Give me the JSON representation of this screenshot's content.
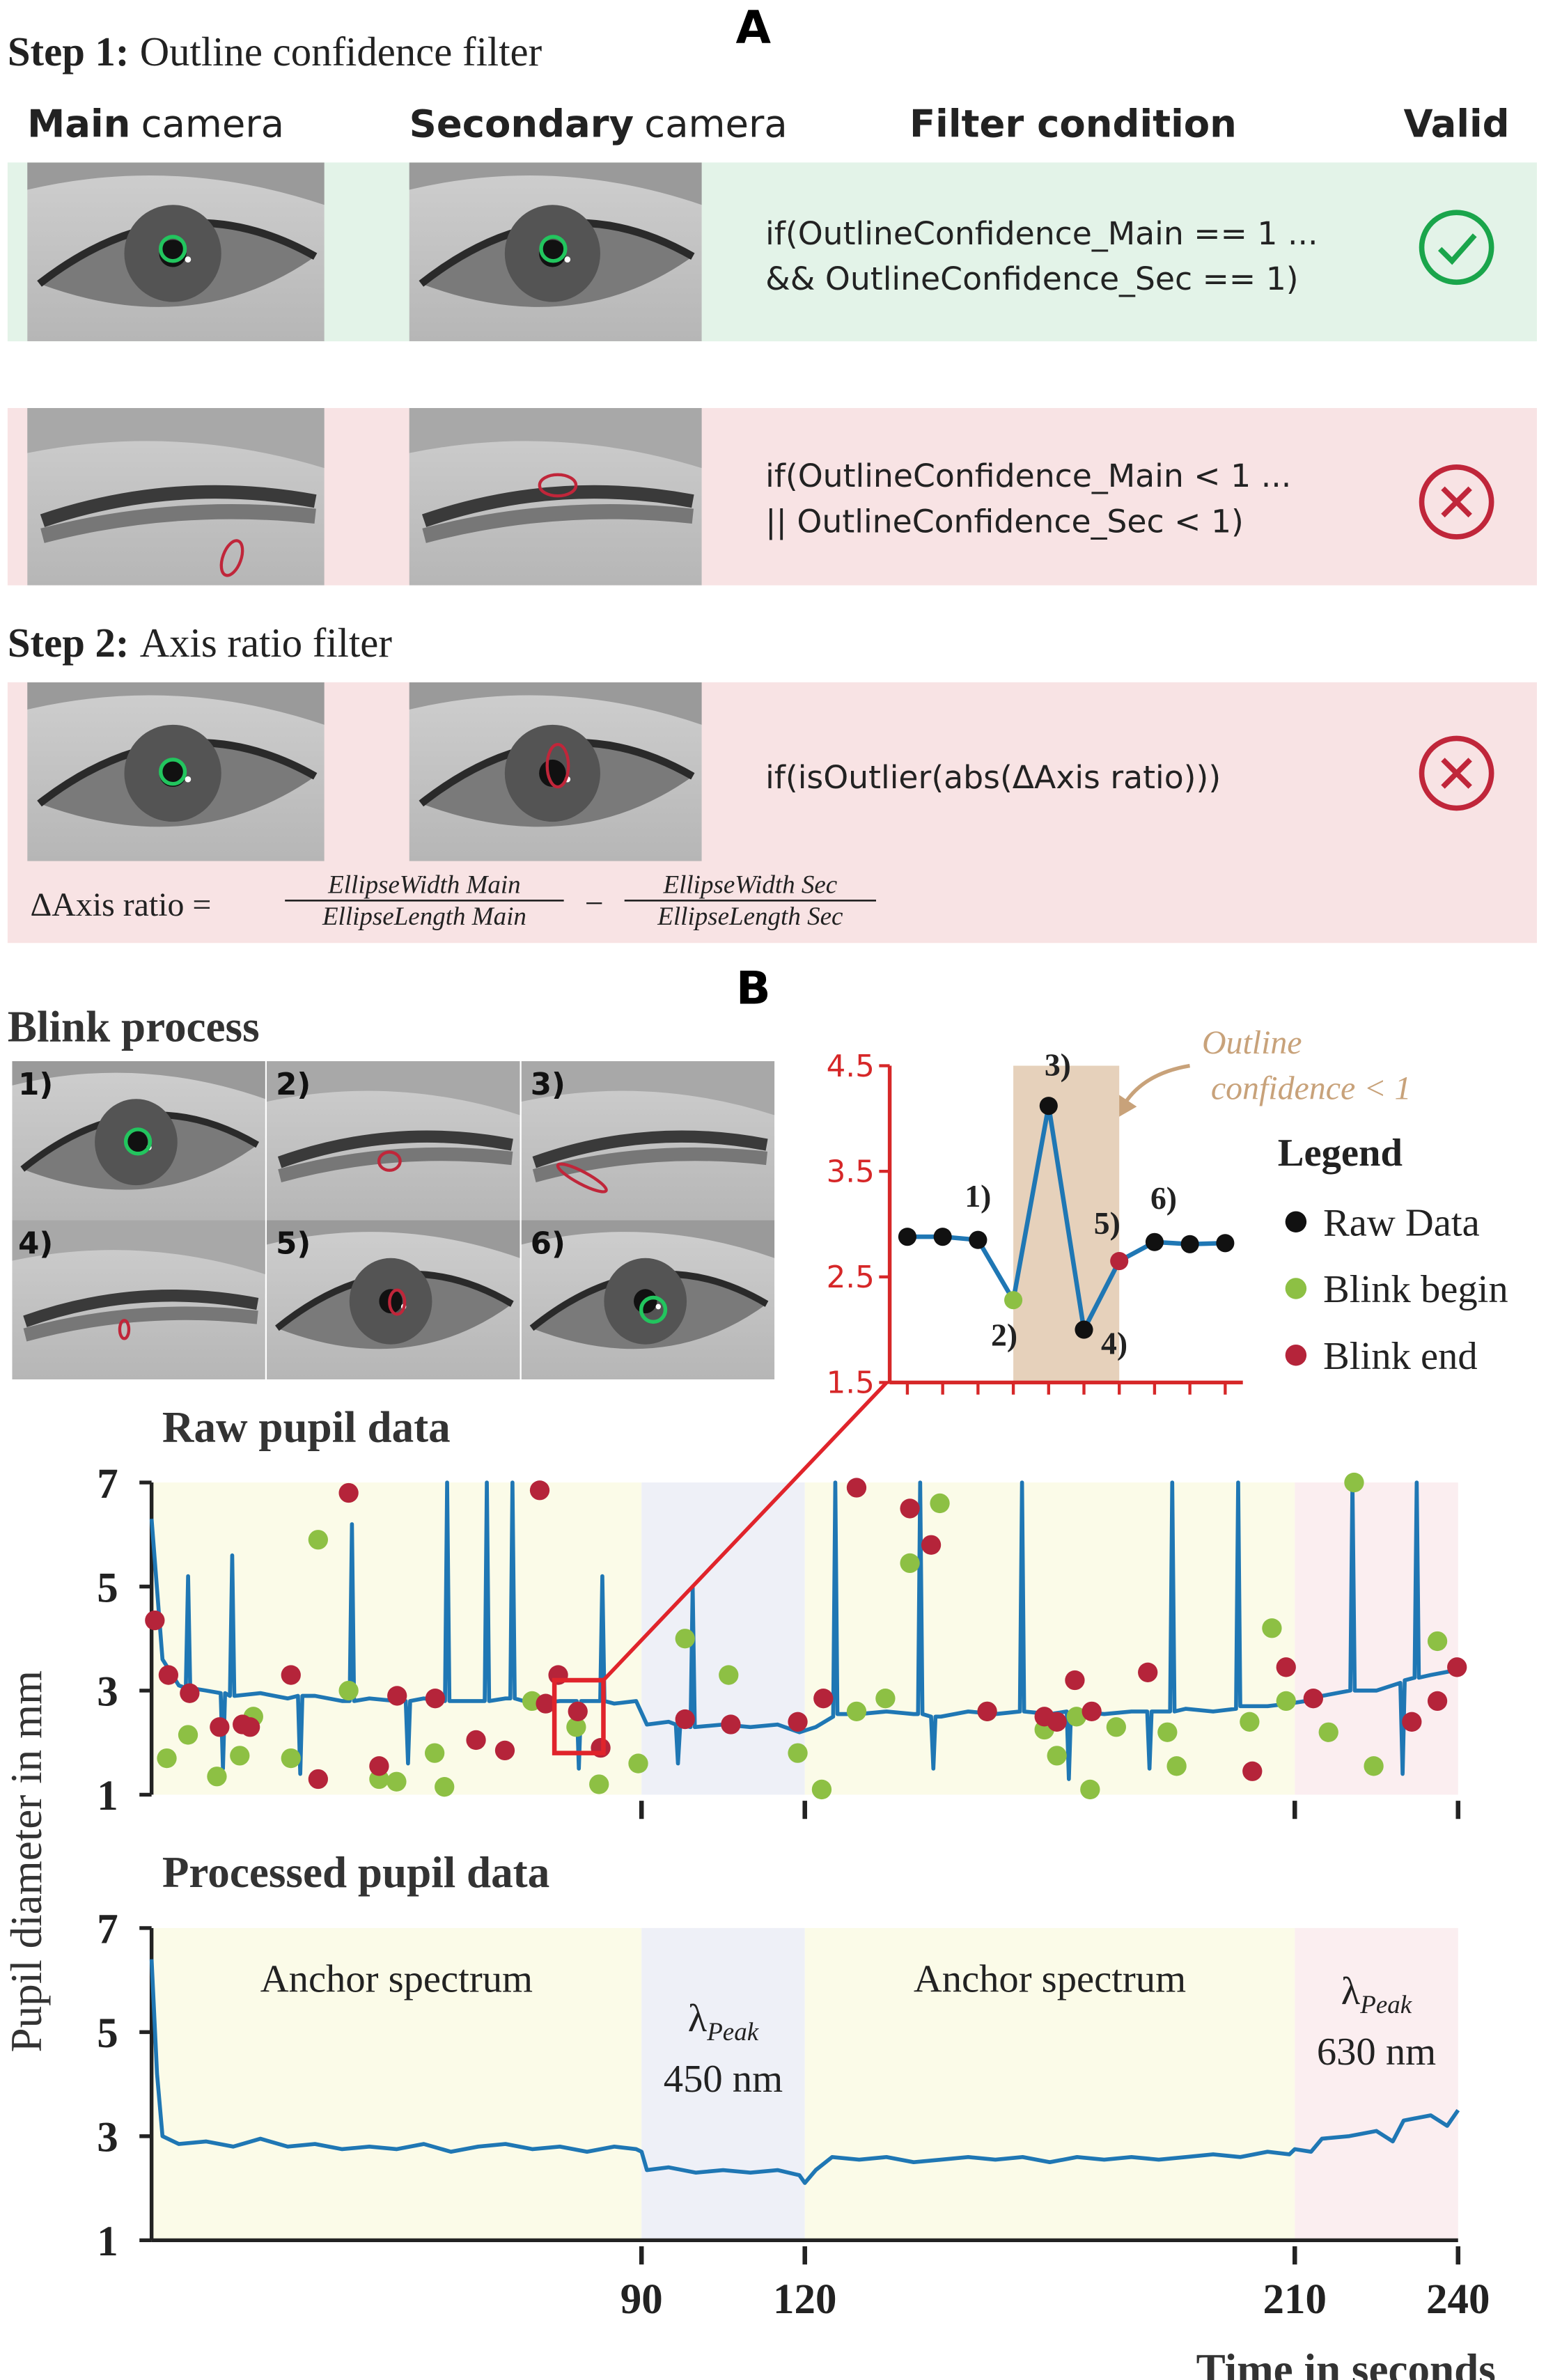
{
  "panel_a": {
    "label": "A",
    "step1": {
      "label": "Step 1:",
      "text": "Outline confidence filter"
    },
    "columns": [
      {
        "bold": "Main",
        "text": "camera"
      },
      {
        "bold": "Secondary",
        "text": "camera"
      },
      {
        "bold": "Filter condition"
      },
      {
        "bold": "Valid"
      }
    ],
    "rows": [
      {
        "condition": [
          "if(OutlineConfidence_Main == 1 ...",
          "&& OutlineConfidence_Sec == 1)"
        ]
      },
      {
        "condition": [
          "if(OutlineConfidence_Main < 1 ...",
          "|| OutlineConfidence_Sec < 1)"
        ]
      }
    ],
    "step2": {
      "label": "Step 2:",
      "text": "Axis ratio filter"
    },
    "step2_condition": "if(isOutlier(abs(ΔAxis ratio)))",
    "formula": {
      "lhs": "ΔAxis ratio =",
      "operator": "−",
      "terms": [
        {
          "num": "EllipseWidth Main",
          "den": "EllipseLength Main"
        },
        {
          "num": "EllipseWidth Sec",
          "den": "EllipseLength Sec"
        }
      ]
    }
  },
  "panel_b": {
    "label": "B",
    "blink_title": "Blink process",
    "frames": [
      "1)",
      "2)",
      "3)",
      "4)",
      "5)",
      "6)"
    ]
  },
  "chart_data": [
    {
      "type": "line",
      "categories": [
        null,
        null,
        null,
        null,
        null,
        null,
        null,
        null,
        null,
        null
      ],
      "values": [
        2.88,
        2.88,
        2.85,
        2.28,
        4.12,
        2.0,
        2.65,
        2.83,
        2.81,
        2.82
      ],
      "point_colors": [
        "#111111",
        "#111111",
        "#111111",
        "#8dc044",
        "#111111",
        "#111111",
        "#b5243a",
        "#111111",
        "#111111",
        "#111111"
      ],
      "point_labels": [
        null,
        null,
        "1)",
        "2)",
        "3)",
        "4)",
        "5)",
        "6)",
        null,
        null
      ],
      "line_color": "#1f77b4",
      "axis_color": "#d62728",
      "shade": [
        3,
        6
      ],
      "shade_color": "#e6d1bb",
      "ylim": [
        1.5,
        4.5
      ],
      "yticks": [
        1.5,
        2.5,
        3.5,
        4.5
      ],
      "annotation": {
        "lines": [
          "Outline",
          "confidence < 1"
        ],
        "color": "#c8a27a"
      },
      "legend": {
        "title": "Legend",
        "entries": [
          {
            "name": "Raw Data",
            "color": "#111111"
          },
          {
            "name": "Blink begin",
            "color": "#8dc044"
          },
          {
            "name": "Blink end",
            "color": "#b5243a"
          }
        ]
      }
    },
    {
      "type": "line",
      "title": "Raw pupil data",
      "line_color": "#1f77b4",
      "x": [
        0,
        2,
        5,
        6.3,
        6.7,
        7.1,
        10,
        12.7,
        13.1,
        13.5,
        14.4,
        14.8,
        15.2,
        20,
        25,
        26.9,
        27.3,
        27.7,
        30,
        35,
        36.4,
        36.8,
        37.2,
        40,
        45,
        46.7,
        47.1,
        47.5,
        50,
        53.9,
        54.3,
        54.7,
        55,
        60,
        61.2,
        61.6,
        62,
        65,
        65.9,
        66.3,
        66.7,
        70,
        75,
        78.1,
        78.5,
        78.9,
        80,
        82.4,
        82.8,
        83.2,
        85,
        89,
        91,
        95,
        96.3,
        96.7,
        97.1,
        99,
        99.4,
        99.8,
        105,
        110,
        115,
        119,
        122,
        125.2,
        125.6,
        126,
        130,
        135,
        140,
        140.8,
        141.2,
        141.6,
        143.2,
        143.6,
        144,
        145,
        150,
        155,
        159.5,
        159.9,
        160.3,
        165,
        168.1,
        168.5,
        168.9,
        170,
        175,
        180,
        182.9,
        183.3,
        183.7,
        185,
        187.1,
        187.5,
        187.9,
        190,
        195,
        199.2,
        199.6,
        200,
        205,
        209,
        212,
        215,
        220.2,
        220.6,
        221,
        225,
        229.4,
        229.8,
        230.2,
        232,
        232.4,
        232.8,
        235,
        240
      ],
      "values": [
        6.3,
        3.6,
        3.1,
        3.05,
        5.2,
        3.05,
        3.0,
        2.95,
        1.5,
        2.95,
        2.9,
        5.6,
        2.9,
        2.95,
        2.85,
        2.9,
        1.4,
        2.9,
        2.9,
        2.8,
        2.8,
        6.2,
        2.8,
        2.85,
        2.8,
        2.8,
        1.6,
        2.8,
        2.85,
        2.8,
        7,
        2.8,
        2.8,
        2.8,
        2.8,
        7,
        2.8,
        2.85,
        2.85,
        7,
        2.85,
        2.75,
        2.8,
        2.8,
        1.5,
        2.8,
        2.8,
        2.8,
        5.2,
        2.8,
        2.75,
        2.8,
        2.35,
        2.4,
        2.35,
        1.6,
        2.35,
        2.3,
        5,
        2.3,
        2.35,
        2.3,
        2.35,
        2.2,
        2.3,
        2.5,
        7,
        2.55,
        2.55,
        2.6,
        2.55,
        2.55,
        7,
        2.55,
        2.5,
        1.5,
        2.5,
        2.5,
        2.6,
        2.55,
        2.6,
        7,
        2.6,
        2.55,
        2.6,
        1.3,
        2.6,
        2.6,
        2.55,
        2.6,
        2.6,
        1.5,
        2.6,
        2.6,
        2.6,
        7,
        2.6,
        2.65,
        2.6,
        2.65,
        7,
        2.7,
        2.7,
        2.75,
        2.8,
        2.9,
        3.0,
        7,
        3.0,
        3.0,
        3.15,
        1.4,
        3.2,
        3.25,
        7,
        3.25,
        3.3,
        3.4
      ],
      "markers": [
        {
          "color": "#8dc044",
          "x": [
            2.8,
            6.7,
            12,
            16.2,
            18.7,
            25.6,
            30.6,
            36.2,
            41.8,
            45,
            52,
            53.8,
            69.9,
            78,
            82.2,
            89.4,
            98,
            106,
            118.7,
            123.1,
            129.5,
            134.8,
            139.3,
            144.8,
            153.5,
            164,
            166.3,
            169.9,
            172.4,
            177.2,
            186.6,
            188.3,
            201.7,
            205.8,
            208.4,
            216.2,
            220.9,
            224.5,
            236.2
          ],
          "y": [
            1.7,
            2.15,
            1.35,
            1.75,
            2.5,
            1.7,
            5.9,
            3.0,
            1.3,
            1.25,
            1.8,
            1.15,
            2.8,
            2.3,
            1.2,
            1.6,
            4.0,
            3.3,
            1.8,
            1.1,
            2.6,
            2.85,
            5.45,
            6.6,
            2.6,
            2.25,
            1.75,
            2.5,
            1.1,
            2.3,
            2.2,
            1.55,
            2.4,
            4.2,
            2.8,
            2.2,
            7.0,
            1.55,
            3.95
          ]
        },
        {
          "color": "#b5243a",
          "x": [
            0.6,
            3.1,
            7,
            12.5,
            16.7,
            18.1,
            25.6,
            30.6,
            36.2,
            41.8,
            45.1,
            52.1,
            59.6,
            64.9,
            71.3,
            72.4,
            74.7,
            78.3,
            82.5,
            98,
            106.4,
            118.7,
            123.4,
            129.5,
            139.3,
            143.2,
            153.5,
            164,
            166.3,
            169.6,
            172.7,
            183,
            202.2,
            208.4,
            213.4,
            231.5,
            236.2,
            239.8
          ],
          "y": [
            4.35,
            3.3,
            2.95,
            2.3,
            2.35,
            2.3,
            3.3,
            1.3,
            6.8,
            1.55,
            2.9,
            2.85,
            2.05,
            1.85,
            6.85,
            2.75,
            3.3,
            2.6,
            1.9,
            2.45,
            2.35,
            2.4,
            2.85,
            6.9,
            6.5,
            5.8,
            2.6,
            2.5,
            2.4,
            3.2,
            2.6,
            3.35,
            1.45,
            3.45,
            2.85,
            2.4,
            2.8,
            3.45
          ]
        }
      ],
      "highlight": {
        "x": [
          74,
          83
        ],
        "y": [
          1.8,
          3.2
        ],
        "color": "#e0242b"
      },
      "regions": [
        {
          "x": [
            0,
            90
          ],
          "color": "#fbfbe8"
        },
        {
          "x": [
            90,
            120
          ],
          "color": "#eef0f7"
        },
        {
          "x": [
            120,
            210
          ],
          "color": "#fbfbe8"
        },
        {
          "x": [
            210,
            240
          ],
          "color": "#fbeef0"
        }
      ],
      "xlim": [
        0,
        240
      ],
      "xticks": [
        90,
        120,
        210,
        240
      ],
      "xtick_labels": false,
      "ylim": [
        1,
        7
      ],
      "yticks": [
        1,
        3,
        5,
        7
      ]
    },
    {
      "type": "line",
      "title": "Processed pupil data",
      "line_color": "#1f77b4",
      "xlabel": "Time in seconds",
      "ylabel": "Pupil diameter in mm",
      "x": [
        0,
        1,
        2,
        5,
        10,
        15,
        20,
        25,
        30,
        35,
        40,
        45,
        50,
        55,
        60,
        65,
        70,
        75,
        80,
        85,
        89,
        90,
        91,
        95,
        100,
        105,
        110,
        115,
        119,
        120,
        122,
        125,
        130,
        135,
        140,
        145,
        150,
        155,
        160,
        165,
        170,
        175,
        180,
        185,
        190,
        195,
        200,
        205,
        209,
        210,
        213,
        215,
        220,
        225,
        228,
        230,
        235,
        238,
        240
      ],
      "values": [
        6.4,
        4.2,
        3.0,
        2.85,
        2.9,
        2.8,
        2.95,
        2.8,
        2.85,
        2.75,
        2.8,
        2.75,
        2.85,
        2.7,
        2.8,
        2.85,
        2.75,
        2.8,
        2.7,
        2.8,
        2.75,
        2.7,
        2.35,
        2.4,
        2.3,
        2.35,
        2.3,
        2.35,
        2.25,
        2.1,
        2.35,
        2.6,
        2.55,
        2.6,
        2.5,
        2.55,
        2.6,
        2.55,
        2.6,
        2.5,
        2.6,
        2.55,
        2.6,
        2.55,
        2.6,
        2.65,
        2.6,
        2.7,
        2.65,
        2.75,
        2.7,
        2.95,
        3.0,
        3.1,
        2.9,
        3.3,
        3.4,
        3.2,
        3.5
      ],
      "regions": [
        {
          "x": [
            0,
            90
          ],
          "color": "#fbfbe8",
          "label": "Anchor spectrum"
        },
        {
          "x": [
            90,
            120
          ],
          "color": "#eef0f7",
          "symbol": "λ",
          "subscript": "Peak",
          "label": "450 nm"
        },
        {
          "x": [
            120,
            210
          ],
          "color": "#fbfbe8",
          "label": "Anchor spectrum"
        },
        {
          "x": [
            210,
            240
          ],
          "color": "#fbeef0",
          "symbol": "λ",
          "subscript": "Peak",
          "label": "630 nm"
        }
      ],
      "xlim": [
        0,
        240
      ],
      "xticks": [
        90,
        120,
        210,
        240
      ],
      "ylim": [
        1,
        7
      ],
      "yticks": [
        1,
        3,
        5,
        7
      ]
    }
  ]
}
